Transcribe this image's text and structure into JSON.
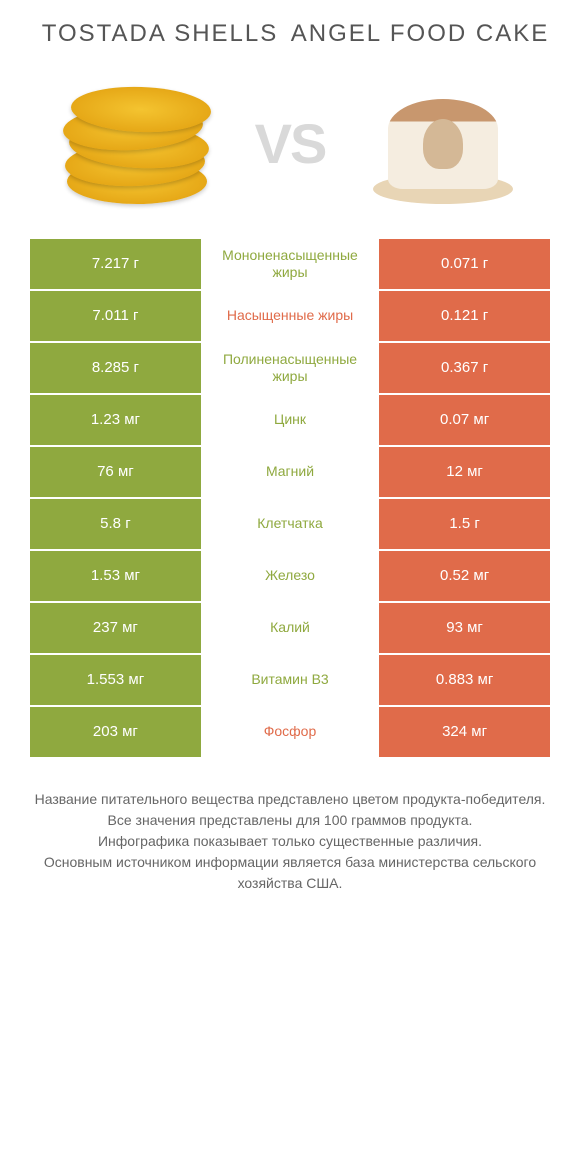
{
  "header": {
    "left_title": "TOSTADA SHELLS",
    "right_title": "ANGEL FOOD CAKE",
    "vs": "VS"
  },
  "colors": {
    "green": "#8fa93f",
    "orange": "#e06b4a",
    "vs_gray": "#d9d9d9",
    "title_gray": "#555555"
  },
  "table": {
    "rows": [
      {
        "left": "7.217 г",
        "mid": "Мононенасыщенные жиры",
        "right": "0.071 г",
        "winner": "left"
      },
      {
        "left": "7.011 г",
        "mid": "Насыщенные жиры",
        "right": "0.121 г",
        "winner": "right"
      },
      {
        "left": "8.285 г",
        "mid": "Полиненасыщенные жиры",
        "right": "0.367 г",
        "winner": "left"
      },
      {
        "left": "1.23 мг",
        "mid": "Цинк",
        "right": "0.07 мг",
        "winner": "left"
      },
      {
        "left": "76 мг",
        "mid": "Магний",
        "right": "12 мг",
        "winner": "left"
      },
      {
        "left": "5.8 г",
        "mid": "Клетчатка",
        "right": "1.5 г",
        "winner": "left"
      },
      {
        "left": "1.53 мг",
        "mid": "Железо",
        "right": "0.52 мг",
        "winner": "left"
      },
      {
        "left": "237 мг",
        "mid": "Калий",
        "right": "93 мг",
        "winner": "left"
      },
      {
        "left": "1.553 мг",
        "mid": "Витамин B3",
        "right": "0.883 мг",
        "winner": "left"
      },
      {
        "left": "203 мг",
        "mid": "Фосфор",
        "right": "324 мг",
        "winner": "right"
      }
    ]
  },
  "footer": {
    "line1": "Название питательного вещества представлено цветом продукта-победителя.",
    "line2": "Все значения представлены для 100 граммов продукта.",
    "line3": "Инфографика показывает только существенные различия.",
    "line4": "Основным источником информации является база министерства сельского хозяйства США."
  }
}
